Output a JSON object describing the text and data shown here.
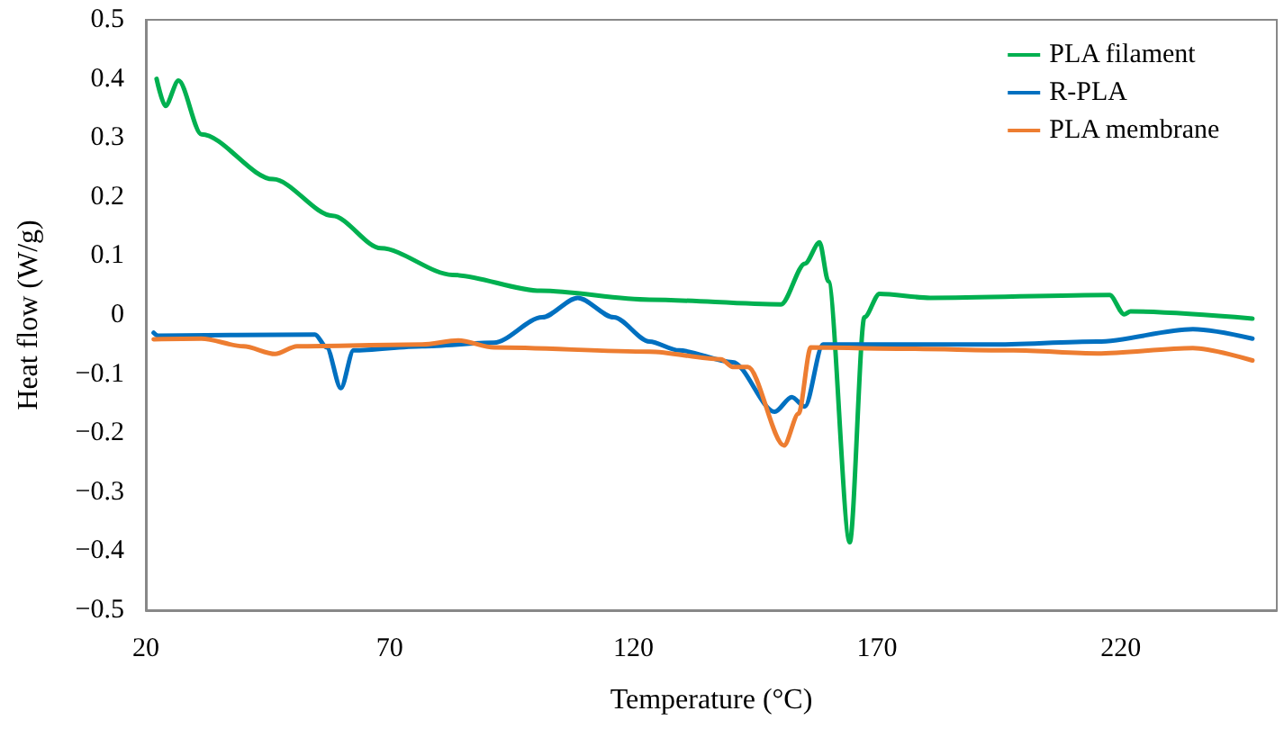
{
  "chart_data": {
    "type": "line",
    "xlabel": "Temperature (°C)",
    "ylabel": "Heat flow (W/g)",
    "xlim": [
      20,
      252
    ],
    "xticks": [
      20,
      70,
      120,
      170,
      220
    ],
    "ylim": [
      -0.5,
      0.5
    ],
    "yticks": [
      {
        "value": -0.5,
        "label": "−0.5"
      },
      {
        "value": -0.4,
        "label": "−0.4"
      },
      {
        "value": -0.3,
        "label": "−0.3"
      },
      {
        "value": -0.2,
        "label": "−0.2"
      },
      {
        "value": -0.1,
        "label": "−0.1"
      },
      0,
      0.1,
      0.2,
      0.3,
      0.4,
      0.5
    ],
    "grid": false,
    "legend": "top right",
    "marker": "none",
    "line_style": "solid",
    "series": [
      {
        "name": "PLA filament",
        "color": "#00b050",
        "x": [
          22.2,
          24,
          26.7,
          31.4,
          46.1,
          58.3,
          68.2,
          82.9,
          101,
          123.3,
          150.3,
          155.2,
          158.2,
          160,
          164.4,
          167.4,
          170.5,
          180.9,
          217.7,
          220.7,
          222,
          247
        ],
        "values": [
          0.4,
          0.354,
          0.397,
          0.306,
          0.23,
          0.168,
          0.113,
          0.068,
          0.041,
          0.026,
          0.018,
          0.087,
          0.123,
          0.057,
          -0.385,
          -0.004,
          0.036,
          0.029,
          0.034,
          0.001,
          0.006,
          -0.006
        ]
      },
      {
        "name": "R-PLA",
        "color": "#0070c0",
        "x": [
          21.6,
          22.5,
          54.7,
          57.1,
          60,
          62.6,
          76.7,
          91.4,
          101.3,
          108.6,
          116,
          123.3,
          129.4,
          140.4,
          149,
          152.5,
          155.2,
          158.9,
          193.2,
          215.2,
          234.8,
          247
        ],
        "values": [
          -0.03,
          -0.035,
          -0.033,
          -0.055,
          -0.124,
          -0.06,
          -0.053,
          -0.047,
          -0.004,
          0.029,
          -0.004,
          -0.045,
          -0.06,
          -0.08,
          -0.164,
          -0.139,
          -0.155,
          -0.05,
          -0.05,
          -0.045,
          -0.024,
          -0.04
        ]
      },
      {
        "name": "PLA membrane",
        "color": "#ed7d31",
        "x": [
          21.6,
          31.4,
          40,
          46.5,
          51,
          76.7,
          84.1,
          91.4,
          123.3,
          138,
          140.4,
          143.5,
          150.9,
          153.9,
          156.4,
          175,
          198,
          215.2,
          234.8,
          247
        ],
        "values": [
          -0.041,
          -0.04,
          -0.053,
          -0.066,
          -0.053,
          -0.05,
          -0.043,
          -0.055,
          -0.062,
          -0.075,
          -0.088,
          -0.088,
          -0.221,
          -0.167,
          -0.055,
          -0.057,
          -0.06,
          -0.065,
          -0.056,
          -0.077
        ]
      }
    ]
  }
}
